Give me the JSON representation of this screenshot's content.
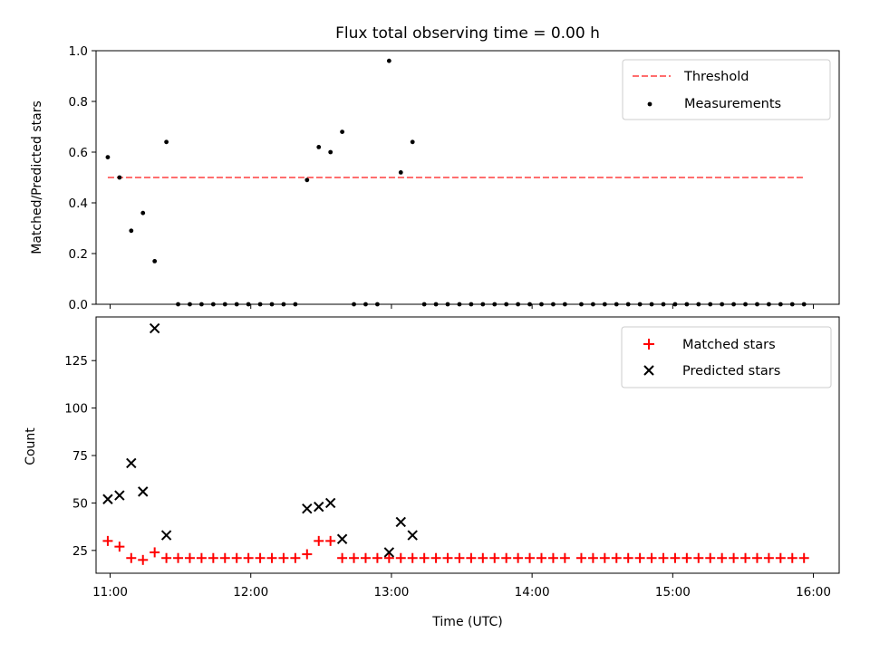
{
  "chart_data": [
    {
      "type": "scatter",
      "title": "Flux total observing time = 0.00 h",
      "xlabel": "",
      "ylabel": "Matched/Predicted stars",
      "xlim": [
        "10:54",
        "16:11"
      ],
      "ylim": [
        0,
        1.0
      ],
      "yticks": [
        "0.0",
        "0.2",
        "0.4",
        "0.6",
        "0.8",
        "1.0"
      ],
      "xticks": [
        "11:00",
        "12:00",
        "13:00",
        "14:00",
        "15:00",
        "16:00"
      ],
      "legend": {
        "position": "top-right",
        "entries": [
          "Threshold",
          "Measurements"
        ]
      },
      "threshold": {
        "name": "Threshold",
        "value": 0.5,
        "x_start": "10:59",
        "x_end": "15:56",
        "color": "#ff6e6e"
      },
      "series": [
        {
          "name": "Measurements",
          "color": "#000000",
          "x": [
            "10:59",
            "11:04",
            "11:09",
            "11:14",
            "11:19",
            "11:24",
            "11:29",
            "11:34",
            "11:39",
            "11:44",
            "11:49",
            "11:54",
            "11:59",
            "12:04",
            "12:09",
            "12:14",
            "12:19",
            "12:24",
            "12:29",
            "12:34",
            "12:39",
            "12:44",
            "12:49",
            "12:54",
            "12:59",
            "13:04",
            "13:09",
            "13:14",
            "13:19",
            "13:24",
            "13:29",
            "13:34",
            "13:39",
            "13:44",
            "13:49",
            "13:54",
            "13:59",
            "14:04",
            "14:09",
            "14:14",
            "14:21",
            "14:26",
            "14:31",
            "14:36",
            "14:41",
            "14:46",
            "14:51",
            "14:56",
            "15:01",
            "15:06",
            "15:11",
            "15:16",
            "15:21",
            "15:26",
            "15:31",
            "15:36",
            "15:41",
            "15:46",
            "15:51",
            "15:56"
          ],
          "y": [
            0.58,
            0.5,
            0.29,
            0.36,
            0.17,
            0.64,
            0,
            0,
            0,
            0,
            0,
            0,
            0,
            0,
            0,
            0,
            0,
            0.49,
            0.62,
            0.6,
            0.68,
            0,
            0,
            0,
            0.96,
            0.52,
            0.64,
            0,
            0,
            0,
            0,
            0,
            0,
            0,
            0,
            0,
            0,
            0,
            0,
            0,
            0,
            0,
            0,
            0,
            0,
            0,
            0,
            0,
            0,
            0,
            0,
            0,
            0,
            0,
            0,
            0,
            0,
            0,
            0,
            0
          ]
        }
      ]
    },
    {
      "type": "scatter",
      "title": "",
      "xlabel": "Time (UTC)",
      "ylabel": "Count",
      "xlim": [
        "10:54",
        "16:11"
      ],
      "ylim": [
        13,
        148
      ],
      "yticks": [
        "25",
        "50",
        "75",
        "100",
        "125"
      ],
      "xticks": [
        "11:00",
        "12:00",
        "13:00",
        "14:00",
        "15:00",
        "16:00"
      ],
      "legend": {
        "position": "top-right",
        "entries": [
          "Matched stars",
          "Predicted stars"
        ]
      },
      "series": [
        {
          "name": "Matched stars",
          "marker": "+",
          "color": "#ff0000",
          "x": [
            "10:59",
            "11:04",
            "11:09",
            "11:14",
            "11:19",
            "11:24",
            "11:29",
            "11:34",
            "11:39",
            "11:44",
            "11:49",
            "11:54",
            "11:59",
            "12:04",
            "12:09",
            "12:14",
            "12:19",
            "12:24",
            "12:29",
            "12:34",
            "12:39",
            "12:44",
            "12:49",
            "12:54",
            "12:59",
            "13:04",
            "13:09",
            "13:14",
            "13:19",
            "13:24",
            "13:29",
            "13:34",
            "13:39",
            "13:44",
            "13:49",
            "13:54",
            "13:59",
            "14:04",
            "14:09",
            "14:14",
            "14:21",
            "14:26",
            "14:31",
            "14:36",
            "14:41",
            "14:46",
            "14:51",
            "14:56",
            "15:01",
            "15:06",
            "15:11",
            "15:16",
            "15:21",
            "15:26",
            "15:31",
            "15:36",
            "15:41",
            "15:46",
            "15:51",
            "15:56"
          ],
          "y": [
            30,
            27,
            21,
            20,
            24,
            21,
            21,
            21,
            21,
            21,
            21,
            21,
            21,
            21,
            21,
            21,
            21,
            23,
            30,
            30,
            21,
            21,
            21,
            21,
            21,
            21,
            21,
            21,
            21,
            21,
            21,
            21,
            21,
            21,
            21,
            21,
            21,
            21,
            21,
            21,
            21,
            21,
            21,
            21,
            21,
            21,
            21,
            21,
            21,
            21,
            21,
            21,
            21,
            21,
            21,
            21,
            21,
            21,
            21,
            21
          ]
        },
        {
          "name": "Predicted stars",
          "marker": "x",
          "color": "#000000",
          "x": [
            "10:59",
            "11:04",
            "11:09",
            "11:14",
            "11:19",
            "11:24",
            "12:24",
            "12:29",
            "12:34",
            "12:39",
            "12:59",
            "13:04",
            "13:09"
          ],
          "y": [
            52,
            54,
            71,
            56,
            142,
            33,
            47,
            48,
            50,
            31,
            24,
            40,
            33
          ]
        }
      ]
    }
  ]
}
